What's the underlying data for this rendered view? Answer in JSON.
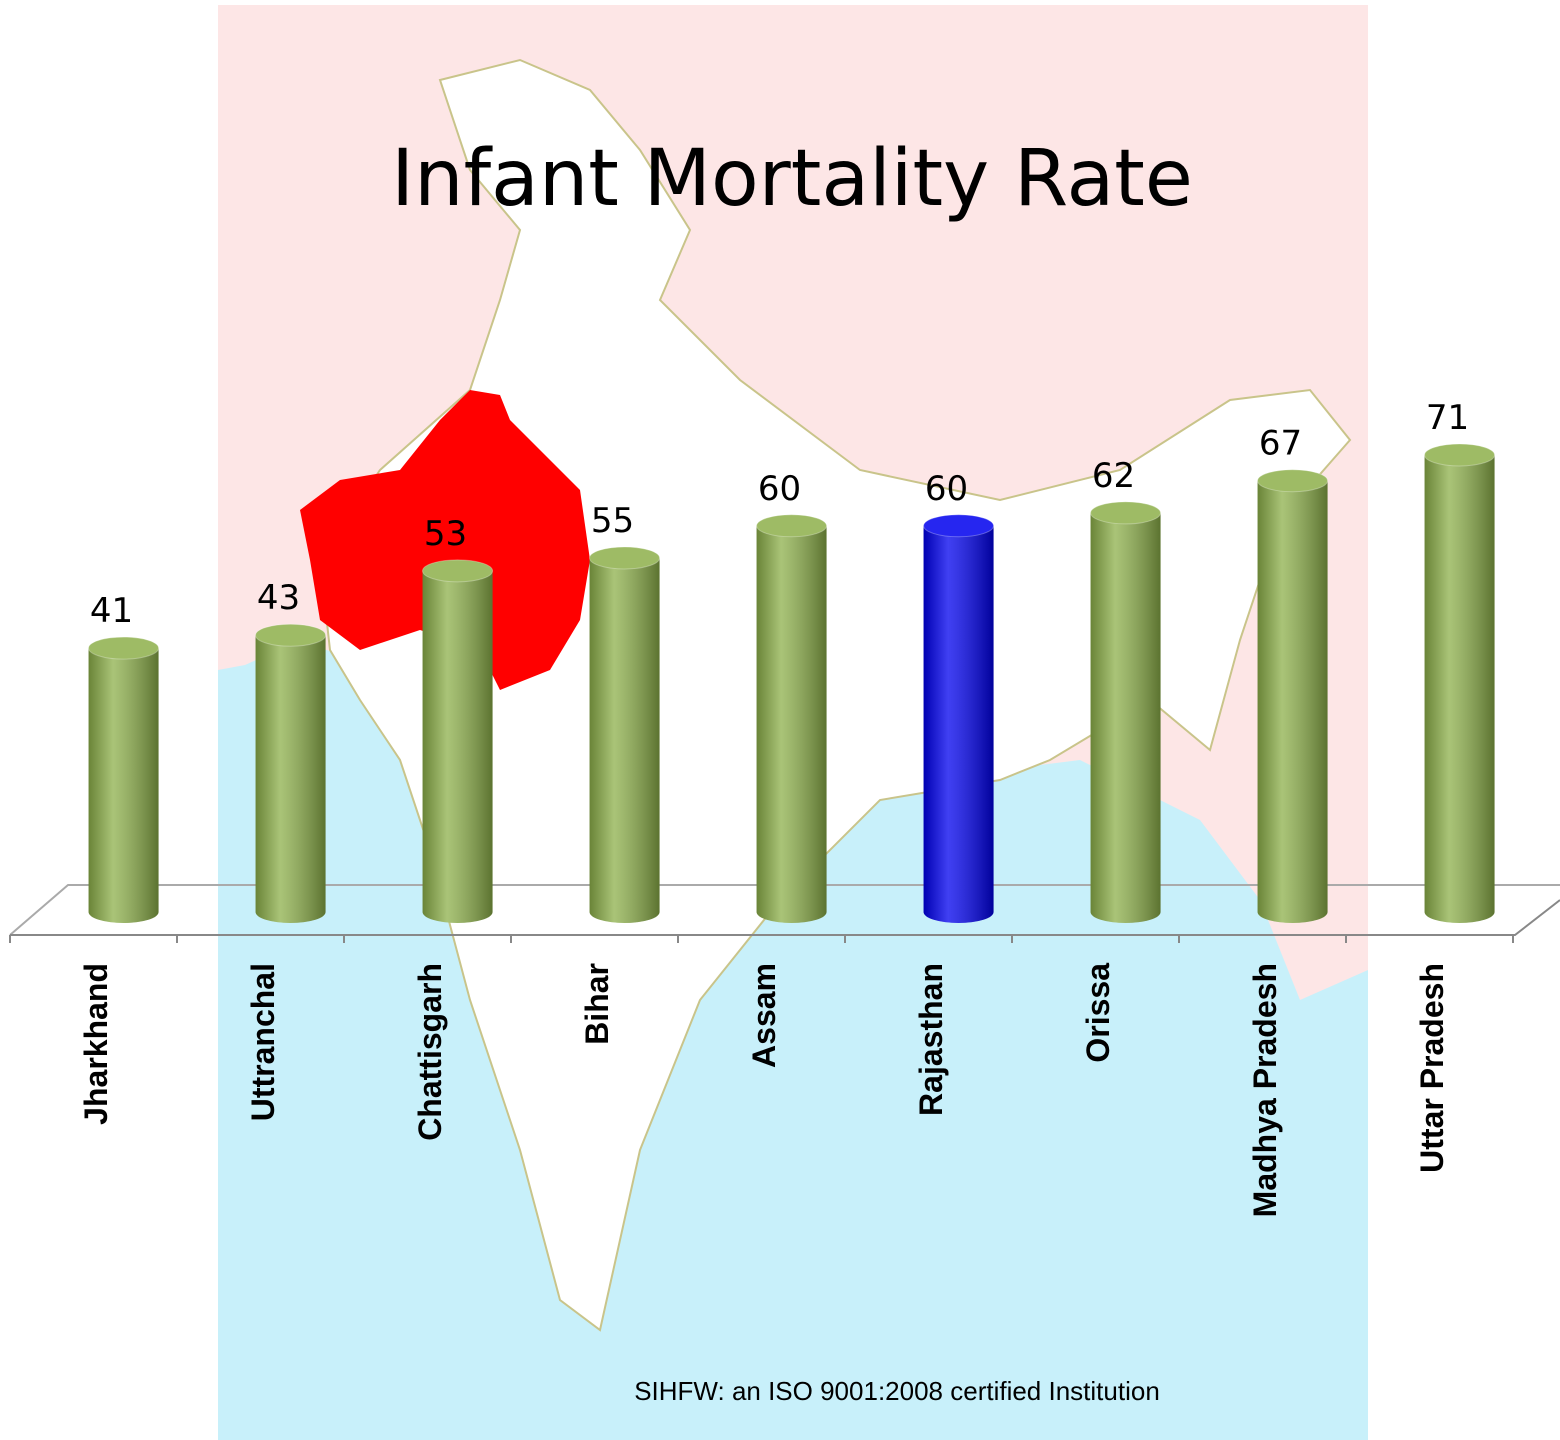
{
  "chart_data": {
    "type": "bar",
    "title": "Infant Mortality Rate",
    "categories": [
      "Jharkhand",
      "Uttranchal",
      "Chattisgarh",
      "Bihar",
      "Assam",
      "Rajasthan",
      "Orissa",
      "Madhya Pradesh",
      "Uttar Pradesh"
    ],
    "values": [
      41,
      43,
      53,
      55,
      60,
      60,
      62,
      67,
      71
    ],
    "colors": [
      "#8db04a",
      "#8db04a",
      "#8db04a",
      "#8db04a",
      "#8db04a",
      "#0000ee",
      "#8db04a",
      "#8db04a",
      "#8db04a"
    ],
    "footer": "SIHFW: an ISO 9001:2008 certified Institution"
  }
}
